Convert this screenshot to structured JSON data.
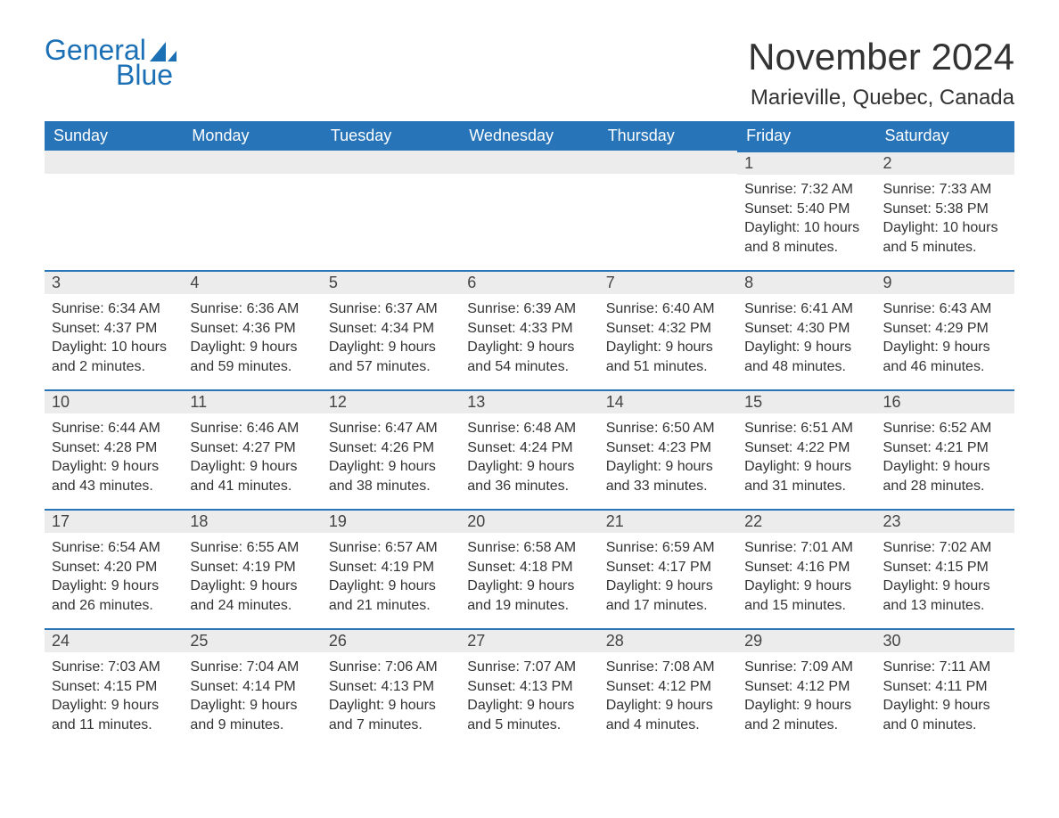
{
  "logo": {
    "text_top": "General",
    "text_bottom": "Blue",
    "color": "#1a6fb5"
  },
  "title": {
    "month": "November 2024",
    "location": "Marieville, Quebec, Canada"
  },
  "colors": {
    "header_bg": "#2874b8",
    "header_text": "#ffffff",
    "daynum_bg": "#ececec",
    "rule": "#2874b8",
    "body_text": "#333333",
    "page_bg": "#ffffff"
  },
  "typography": {
    "title_fontsize": 42,
    "location_fontsize": 24,
    "header_fontsize": 18,
    "daynum_fontsize": 18,
    "body_fontsize": 16
  },
  "calendar": {
    "type": "table",
    "columns": [
      "Sunday",
      "Monday",
      "Tuesday",
      "Wednesday",
      "Thursday",
      "Friday",
      "Saturday"
    ],
    "leading_blanks": 5,
    "days": [
      {
        "n": 1,
        "sunrise": "7:32 AM",
        "sunset": "5:40 PM",
        "daylight": "10 hours and 8 minutes."
      },
      {
        "n": 2,
        "sunrise": "7:33 AM",
        "sunset": "5:38 PM",
        "daylight": "10 hours and 5 minutes."
      },
      {
        "n": 3,
        "sunrise": "6:34 AM",
        "sunset": "4:37 PM",
        "daylight": "10 hours and 2 minutes."
      },
      {
        "n": 4,
        "sunrise": "6:36 AM",
        "sunset": "4:36 PM",
        "daylight": "9 hours and 59 minutes."
      },
      {
        "n": 5,
        "sunrise": "6:37 AM",
        "sunset": "4:34 PM",
        "daylight": "9 hours and 57 minutes."
      },
      {
        "n": 6,
        "sunrise": "6:39 AM",
        "sunset": "4:33 PM",
        "daylight": "9 hours and 54 minutes."
      },
      {
        "n": 7,
        "sunrise": "6:40 AM",
        "sunset": "4:32 PM",
        "daylight": "9 hours and 51 minutes."
      },
      {
        "n": 8,
        "sunrise": "6:41 AM",
        "sunset": "4:30 PM",
        "daylight": "9 hours and 48 minutes."
      },
      {
        "n": 9,
        "sunrise": "6:43 AM",
        "sunset": "4:29 PM",
        "daylight": "9 hours and 46 minutes."
      },
      {
        "n": 10,
        "sunrise": "6:44 AM",
        "sunset": "4:28 PM",
        "daylight": "9 hours and 43 minutes."
      },
      {
        "n": 11,
        "sunrise": "6:46 AM",
        "sunset": "4:27 PM",
        "daylight": "9 hours and 41 minutes."
      },
      {
        "n": 12,
        "sunrise": "6:47 AM",
        "sunset": "4:26 PM",
        "daylight": "9 hours and 38 minutes."
      },
      {
        "n": 13,
        "sunrise": "6:48 AM",
        "sunset": "4:24 PM",
        "daylight": "9 hours and 36 minutes."
      },
      {
        "n": 14,
        "sunrise": "6:50 AM",
        "sunset": "4:23 PM",
        "daylight": "9 hours and 33 minutes."
      },
      {
        "n": 15,
        "sunrise": "6:51 AM",
        "sunset": "4:22 PM",
        "daylight": "9 hours and 31 minutes."
      },
      {
        "n": 16,
        "sunrise": "6:52 AM",
        "sunset": "4:21 PM",
        "daylight": "9 hours and 28 minutes."
      },
      {
        "n": 17,
        "sunrise": "6:54 AM",
        "sunset": "4:20 PM",
        "daylight": "9 hours and 26 minutes."
      },
      {
        "n": 18,
        "sunrise": "6:55 AM",
        "sunset": "4:19 PM",
        "daylight": "9 hours and 24 minutes."
      },
      {
        "n": 19,
        "sunrise": "6:57 AM",
        "sunset": "4:19 PM",
        "daylight": "9 hours and 21 minutes."
      },
      {
        "n": 20,
        "sunrise": "6:58 AM",
        "sunset": "4:18 PM",
        "daylight": "9 hours and 19 minutes."
      },
      {
        "n": 21,
        "sunrise": "6:59 AM",
        "sunset": "4:17 PM",
        "daylight": "9 hours and 17 minutes."
      },
      {
        "n": 22,
        "sunrise": "7:01 AM",
        "sunset": "4:16 PM",
        "daylight": "9 hours and 15 minutes."
      },
      {
        "n": 23,
        "sunrise": "7:02 AM",
        "sunset": "4:15 PM",
        "daylight": "9 hours and 13 minutes."
      },
      {
        "n": 24,
        "sunrise": "7:03 AM",
        "sunset": "4:15 PM",
        "daylight": "9 hours and 11 minutes."
      },
      {
        "n": 25,
        "sunrise": "7:04 AM",
        "sunset": "4:14 PM",
        "daylight": "9 hours and 9 minutes."
      },
      {
        "n": 26,
        "sunrise": "7:06 AM",
        "sunset": "4:13 PM",
        "daylight": "9 hours and 7 minutes."
      },
      {
        "n": 27,
        "sunrise": "7:07 AM",
        "sunset": "4:13 PM",
        "daylight": "9 hours and 5 minutes."
      },
      {
        "n": 28,
        "sunrise": "7:08 AM",
        "sunset": "4:12 PM",
        "daylight": "9 hours and 4 minutes."
      },
      {
        "n": 29,
        "sunrise": "7:09 AM",
        "sunset": "4:12 PM",
        "daylight": "9 hours and 2 minutes."
      },
      {
        "n": 30,
        "sunrise": "7:11 AM",
        "sunset": "4:11 PM",
        "daylight": "9 hours and 0 minutes."
      }
    ],
    "labels": {
      "sunrise": "Sunrise:",
      "sunset": "Sunset:",
      "daylight": "Daylight:"
    }
  }
}
